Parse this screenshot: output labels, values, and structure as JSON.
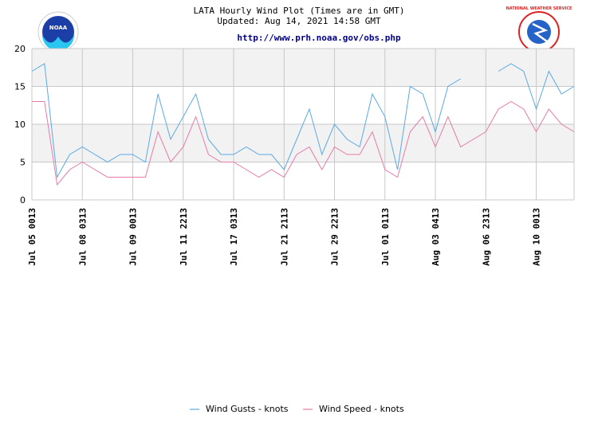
{
  "header": {
    "title": "LATA Hourly Wind Plot (Times are in GMT)",
    "updated": "Updated: Aug 14, 2021 14:58 GMT",
    "url": "http://www.prh.noaa.gov/obs.php"
  },
  "logos": {
    "left_text": "NOAA",
    "right_text": "NATIONAL WEATHER SERVICE"
  },
  "colors": {
    "gust": "#5aa9e6",
    "speed": "#e87ba8",
    "band": "#f2f2f2",
    "grid": "#c8c8c8"
  },
  "chart_data": {
    "type": "line",
    "ylim": [
      0,
      20
    ],
    "yticks": [
      0,
      5,
      10,
      15,
      20
    ],
    "x_count": 44,
    "xtick_indices": [
      0,
      4,
      8,
      12,
      16,
      20,
      24,
      28,
      32,
      36,
      40
    ],
    "xtick_labels": [
      "Jul 05 0013",
      "Jul 08 0313",
      "Jul 09 0013",
      "Jul 11 2213",
      "Jul 17 0313",
      "Jul 21 2113",
      "Jul 29 2213",
      "Jul 01 0113",
      "Aug 03 0413",
      "Aug 06 2313",
      "Aug 10 0013"
    ],
    "series": [
      {
        "name": "Wind Gusts - knots",
        "values": [
          17,
          18,
          3,
          6,
          7,
          6,
          5,
          6,
          6,
          5,
          14,
          8,
          11,
          14,
          8,
          6,
          6,
          7,
          6,
          6,
          4,
          8,
          12,
          6,
          10,
          8,
          7,
          14,
          11,
          4,
          15,
          14,
          9,
          15,
          16,
          null,
          null,
          17,
          18,
          17,
          12,
          17,
          14,
          15
        ]
      },
      {
        "name": "Wind Speed - knots",
        "values": [
          13,
          13,
          2,
          4,
          5,
          4,
          3,
          3,
          3,
          3,
          9,
          5,
          7,
          11,
          6,
          5,
          5,
          4,
          3,
          4,
          3,
          6,
          7,
          4,
          7,
          6,
          6,
          9,
          4,
          3,
          9,
          11,
          7,
          11,
          7,
          8,
          9,
          12,
          13,
          12,
          9,
          12,
          10,
          9
        ]
      }
    ]
  }
}
